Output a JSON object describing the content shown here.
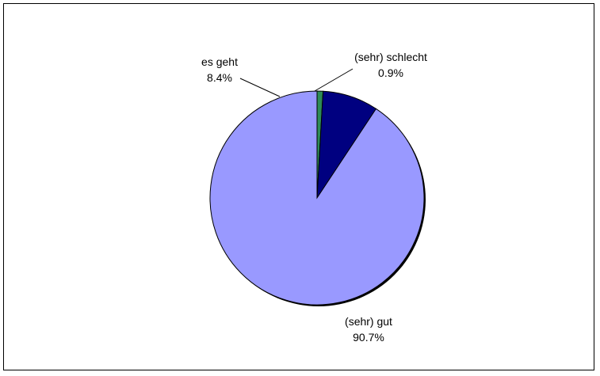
{
  "chart_data": {
    "type": "pie",
    "title": "",
    "slices": [
      {
        "label": "(sehr) schlecht",
        "value": 0.9,
        "value_label": "0.9%",
        "color": "#2e8b57"
      },
      {
        "label": "es geht",
        "value": 8.4,
        "value_label": "8.4%",
        "color": "#000080"
      },
      {
        "label": "(sehr) gut",
        "value": 90.7,
        "value_label": "90.7%",
        "color": "#9999ff"
      }
    ],
    "legend": "none",
    "data_labels": "category and percent"
  }
}
